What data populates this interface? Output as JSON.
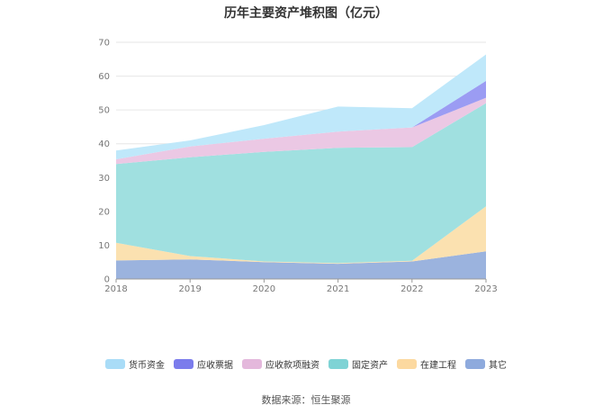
{
  "title": "历年主要资产堆积图（亿元）",
  "source": "数据来源：恒生聚源",
  "chart_data": {
    "type": "area",
    "stacked": true,
    "categories": [
      "2018",
      "2019",
      "2020",
      "2021",
      "2022",
      "2023"
    ],
    "ylim": [
      0,
      70
    ],
    "yticks": [
      0,
      10,
      20,
      30,
      40,
      50,
      60,
      70
    ],
    "grid": true,
    "legend_position": "bottom",
    "series": [
      {
        "name": "其它",
        "color": "#9bb3de",
        "values": [
          5.5,
          5.8,
          5.0,
          4.5,
          5.2,
          8.2
        ]
      },
      {
        "name": "在建工程",
        "color": "#fbe1b0",
        "values": [
          5.2,
          1.0,
          0.2,
          0.2,
          0.2,
          13.3
        ]
      },
      {
        "name": "固定资产",
        "color": "#a0e0e0",
        "values": [
          23.3,
          29.2,
          32.4,
          34.1,
          33.6,
          30.5
        ]
      },
      {
        "name": "应收款项融资",
        "color": "#ebc8e4",
        "values": [
          1.4,
          3.2,
          3.9,
          4.8,
          5.8,
          1.6
        ]
      },
      {
        "name": "应收票据",
        "color": "#9b9cf3",
        "values": [
          0.0,
          0.0,
          0.0,
          0.0,
          0.0,
          5.0
        ]
      },
      {
        "name": "货币资金",
        "color": "#bfe8fa",
        "values": [
          2.6,
          1.8,
          4.0,
          7.4,
          5.7,
          7.8
        ]
      }
    ],
    "legend_order": [
      "货币资金",
      "应收票据",
      "应收款项融资",
      "固定资产",
      "在建工程",
      "其它"
    ],
    "legend_colors": {
      "货币资金": "#a9dcf7",
      "应收票据": "#7b7cec",
      "应收款项融资": "#e4b8dc",
      "固定资产": "#7fd3d5",
      "在建工程": "#fcd9a0",
      "其它": "#8eaadd"
    }
  }
}
